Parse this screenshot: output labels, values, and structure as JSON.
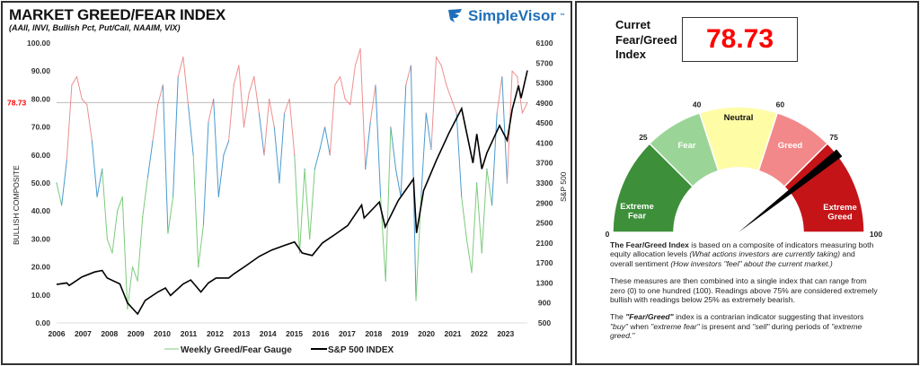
{
  "header": {
    "title": "MARKET GREED/FEAR INDEX",
    "subtitle": "(AAII, INVI, Bullish Pct, Put/Call, NAAIM, VIX)",
    "logo_text": "SimpleVisor",
    "logo_tm": "™"
  },
  "chart_data": {
    "type": "line",
    "title": "MARKET GREED/FEAR INDEX",
    "ylabel_left": "BULLISH COMPOSITE",
    "ylabel_right": "S&P 500",
    "ylim_left": [
      0,
      100
    ],
    "ylim_right": [
      500,
      6100
    ],
    "left_ticks": [
      "0.00",
      "10.00",
      "20.00",
      "30.00",
      "40.00",
      "50.00",
      "60.00",
      "70.00",
      "80.00",
      "90.00",
      "100.00"
    ],
    "right_ticks": [
      "500",
      "900",
      "1300",
      "1700",
      "2100",
      "2500",
      "2900",
      "3300",
      "3700",
      "4100",
      "4500",
      "4900",
      "5300",
      "5700",
      "6100"
    ],
    "x_ticks": [
      "2006",
      "2007",
      "2008",
      "2009",
      "2010",
      "2011",
      "2012",
      "2013",
      "2014",
      "2015",
      "2016",
      "2017",
      "2018",
      "2019",
      "2020",
      "2021",
      "2022",
      "2023"
    ],
    "reference_line": {
      "value": 78.73,
      "label": "78.73",
      "color": "#ff0000"
    },
    "grid": false,
    "legend_position": "bottom",
    "color_bands": {
      "greed": "#ee8f8f",
      "neutral": "#4a9ad0",
      "fear": "#7ccb7c"
    },
    "series": [
      {
        "name": "Weekly Greed/Fear Gauge",
        "axis": "left",
        "x": [
          2006.0,
          2006.2,
          2006.4,
          2006.6,
          2006.8,
          2007.0,
          2007.2,
          2007.4,
          2007.6,
          2007.8,
          2008.0,
          2008.2,
          2008.4,
          2008.6,
          2008.8,
          2009.0,
          2009.2,
          2009.4,
          2009.6,
          2009.8,
          2010.0,
          2010.2,
          2010.4,
          2010.6,
          2010.8,
          2011.0,
          2011.2,
          2011.4,
          2011.6,
          2011.8,
          2012.0,
          2012.2,
          2012.4,
          2012.6,
          2012.8,
          2013.0,
          2013.2,
          2013.4,
          2013.6,
          2013.8,
          2014.0,
          2014.2,
          2014.4,
          2014.6,
          2014.8,
          2015.0,
          2015.2,
          2015.4,
          2015.6,
          2015.8,
          2016.0,
          2016.2,
          2016.4,
          2016.6,
          2016.8,
          2017.0,
          2017.2,
          2017.4,
          2017.6,
          2017.8,
          2018.0,
          2018.2,
          2018.4,
          2018.6,
          2018.8,
          2019.0,
          2019.2,
          2019.4,
          2019.6,
          2019.8,
          2020.0,
          2020.2,
          2020.4,
          2020.6,
          2020.8,
          2021.0,
          2021.2,
          2021.4,
          2021.6,
          2021.8,
          2022.0,
          2022.2,
          2022.4,
          2022.6,
          2022.8,
          2023.0,
          2023.2,
          2023.4,
          2023.6,
          2023.8,
          2024.0,
          2024.2,
          2024.4,
          2024.6
        ],
        "values": [
          50,
          42,
          58,
          85,
          88,
          80,
          78,
          65,
          45,
          55,
          30,
          25,
          40,
          45,
          5,
          20,
          15,
          38,
          52,
          65,
          78,
          85,
          32,
          45,
          88,
          95,
          78,
          60,
          20,
          35,
          72,
          80,
          45,
          60,
          65,
          85,
          92,
          70,
          82,
          88,
          75,
          60,
          80,
          70,
          50,
          75,
          80,
          60,
          25,
          55,
          30,
          55,
          62,
          70,
          60,
          85,
          88,
          80,
          78,
          92,
          98,
          55,
          72,
          85,
          45,
          15,
          70,
          55,
          45,
          85,
          92,
          8,
          45,
          75,
          62,
          95,
          92,
          85,
          80,
          75,
          45,
          30,
          18,
          50,
          25,
          55,
          42,
          75,
          88,
          50,
          90,
          88,
          75,
          78.73
        ]
      },
      {
        "name": "S&P 500 INDEX",
        "axis": "right",
        "color": "#000000",
        "x": [
          2006,
          2006.4,
          2006.5,
          2007,
          2007.5,
          2007.8,
          2008,
          2008.5,
          2008.8,
          2009.2,
          2009.5,
          2010,
          2010.3,
          2010.5,
          2011,
          2011.3,
          2011.7,
          2012,
          2012.3,
          2012.8,
          2013,
          2013.5,
          2014,
          2014.5,
          2015,
          2015.4,
          2015.7,
          2016.1,
          2016.5,
          2017,
          2017.5,
          2018.05,
          2018.15,
          2018.75,
          2018.98,
          2019.5,
          2020.1,
          2020.22,
          2020.5,
          2021,
          2021.5,
          2022,
          2022.45,
          2022.6,
          2022.8,
          2023,
          2023.5,
          2023.8,
          2024,
          2024.25,
          2024.35,
          2024.6
        ],
        "values": [
          1270,
          1300,
          1250,
          1420,
          1520,
          1550,
          1400,
          1280,
          900,
          680,
          950,
          1120,
          1200,
          1050,
          1280,
          1360,
          1120,
          1300,
          1400,
          1400,
          1480,
          1650,
          1830,
          1960,
          2050,
          2120,
          1900,
          1850,
          2100,
          2270,
          2450,
          2860,
          2600,
          2920,
          2420,
          2950,
          3380,
          2300,
          3150,
          3750,
          4300,
          4790,
          3700,
          4280,
          3580,
          3900,
          4450,
          4150,
          4770,
          5250,
          5000,
          5550
        ]
      }
    ]
  },
  "gauge": {
    "current_label": "Curret Fear/Greed Index",
    "current_label_lines": [
      "Curret",
      "Fear/Greed",
      "Index"
    ],
    "current_value": "78.73",
    "value": 78.73,
    "value_color": "#ff0000",
    "zones": [
      {
        "from": 0,
        "to": 25,
        "label_lines": [
          "Extreme",
          "Fear"
        ],
        "color": "#3d8f3a",
        "text_color": "#ffffff"
      },
      {
        "from": 25,
        "to": 40,
        "label_lines": [
          "Fear"
        ],
        "color": "#9ad597",
        "text_color": "#ffffff"
      },
      {
        "from": 40,
        "to": 60,
        "label_lines": [
          "Neutral"
        ],
        "color": "#fffca6",
        "text_color": "#111111"
      },
      {
        "from": 60,
        "to": 75,
        "label_lines": [
          "Greed"
        ],
        "color": "#f28889",
        "text_color": "#ffffff"
      },
      {
        "from": 75,
        "to": 100,
        "label_lines": [
          "Extreme",
          "Greed"
        ],
        "color": "#c41418",
        "text_color": "#ffffff"
      }
    ],
    "ticks": [
      "0",
      "25",
      "40",
      "60",
      "75",
      "100"
    ]
  },
  "description": {
    "p1_bold": "The Fear/Greed Index",
    "p1_a": " is based on a composite of indicators measuring both equity allocation levels ",
    "p1_i1": "(What actions investors are currently taking)",
    "p1_b": " and overall sentiment ",
    "p1_i2": "(How investors \"feel\" about the current market.)",
    "p2": "These measures are then combined into a single index that can range from zero (0) to one hundred (100). Readings above 75% are considered extremely bullish with readings below 25% as extremely bearish.",
    "p3_a": "The ",
    "p3_bi": "\"Fear/Greed\"",
    "p3_b": " index is a contrarian indicator suggesting that investors ",
    "p3_i1": "\"buy\"",
    "p3_c": " when ",
    "p3_i2": "\"extreme fear\"",
    "p3_d": " is present and ",
    "p3_i3": "\"sell\"",
    "p3_e": " during periods of ",
    "p3_i4": "\"extreme greed.\""
  }
}
